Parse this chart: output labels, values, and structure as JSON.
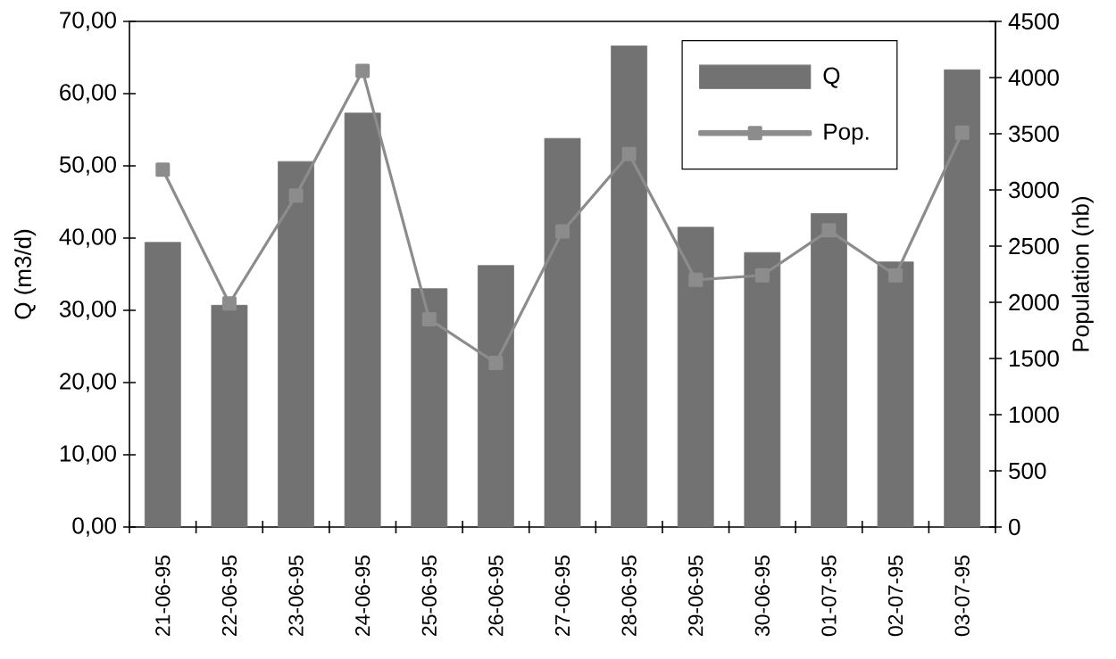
{
  "chart_data": {
    "type": "bar",
    "categories": [
      "21-06-95",
      "22-06-95",
      "23-06-95",
      "24-06-95",
      "25-06-95",
      "26-06-95",
      "27-06-95",
      "28-06-95",
      "29-06-95",
      "30-06-95",
      "01-07-95",
      "02-07-95",
      "03-07-95"
    ],
    "series": [
      {
        "name": "Q",
        "color": "#727272",
        "values": [
          39.4,
          30.7,
          50.6,
          57.3,
          33.0,
          36.2,
          53.8,
          66.6,
          41.5,
          38.0,
          43.4,
          36.7,
          63.3
        ]
      },
      {
        "name": "Pop.",
        "type": "line",
        "axis": "y2",
        "color": "#8c8c8c",
        "values": [
          3180,
          1990,
          2950,
          4060,
          1850,
          1460,
          2630,
          3320,
          2200,
          2240,
          2640,
          2240,
          3510
        ]
      }
    ],
    "ylabel": "Q (m3/d)",
    "y2label": "Population (nb)",
    "ylim": [
      0,
      70
    ],
    "yticks": [
      {
        "value": 0,
        "label": "0,00"
      },
      {
        "value": 10,
        "label": "10,00"
      },
      {
        "value": 20,
        "label": "20,00"
      },
      {
        "value": 30,
        "label": "30,00"
      },
      {
        "value": 40,
        "label": "40,00"
      },
      {
        "value": 50,
        "label": "50,00"
      },
      {
        "value": 60,
        "label": "60,00"
      },
      {
        "value": 70,
        "label": "70,00"
      }
    ],
    "y2lim": [
      0,
      4500
    ],
    "y2ticks": [
      0,
      500,
      1000,
      1500,
      2000,
      2500,
      3000,
      3500,
      4000,
      4500
    ],
    "legend": "top right",
    "marker": "square"
  }
}
